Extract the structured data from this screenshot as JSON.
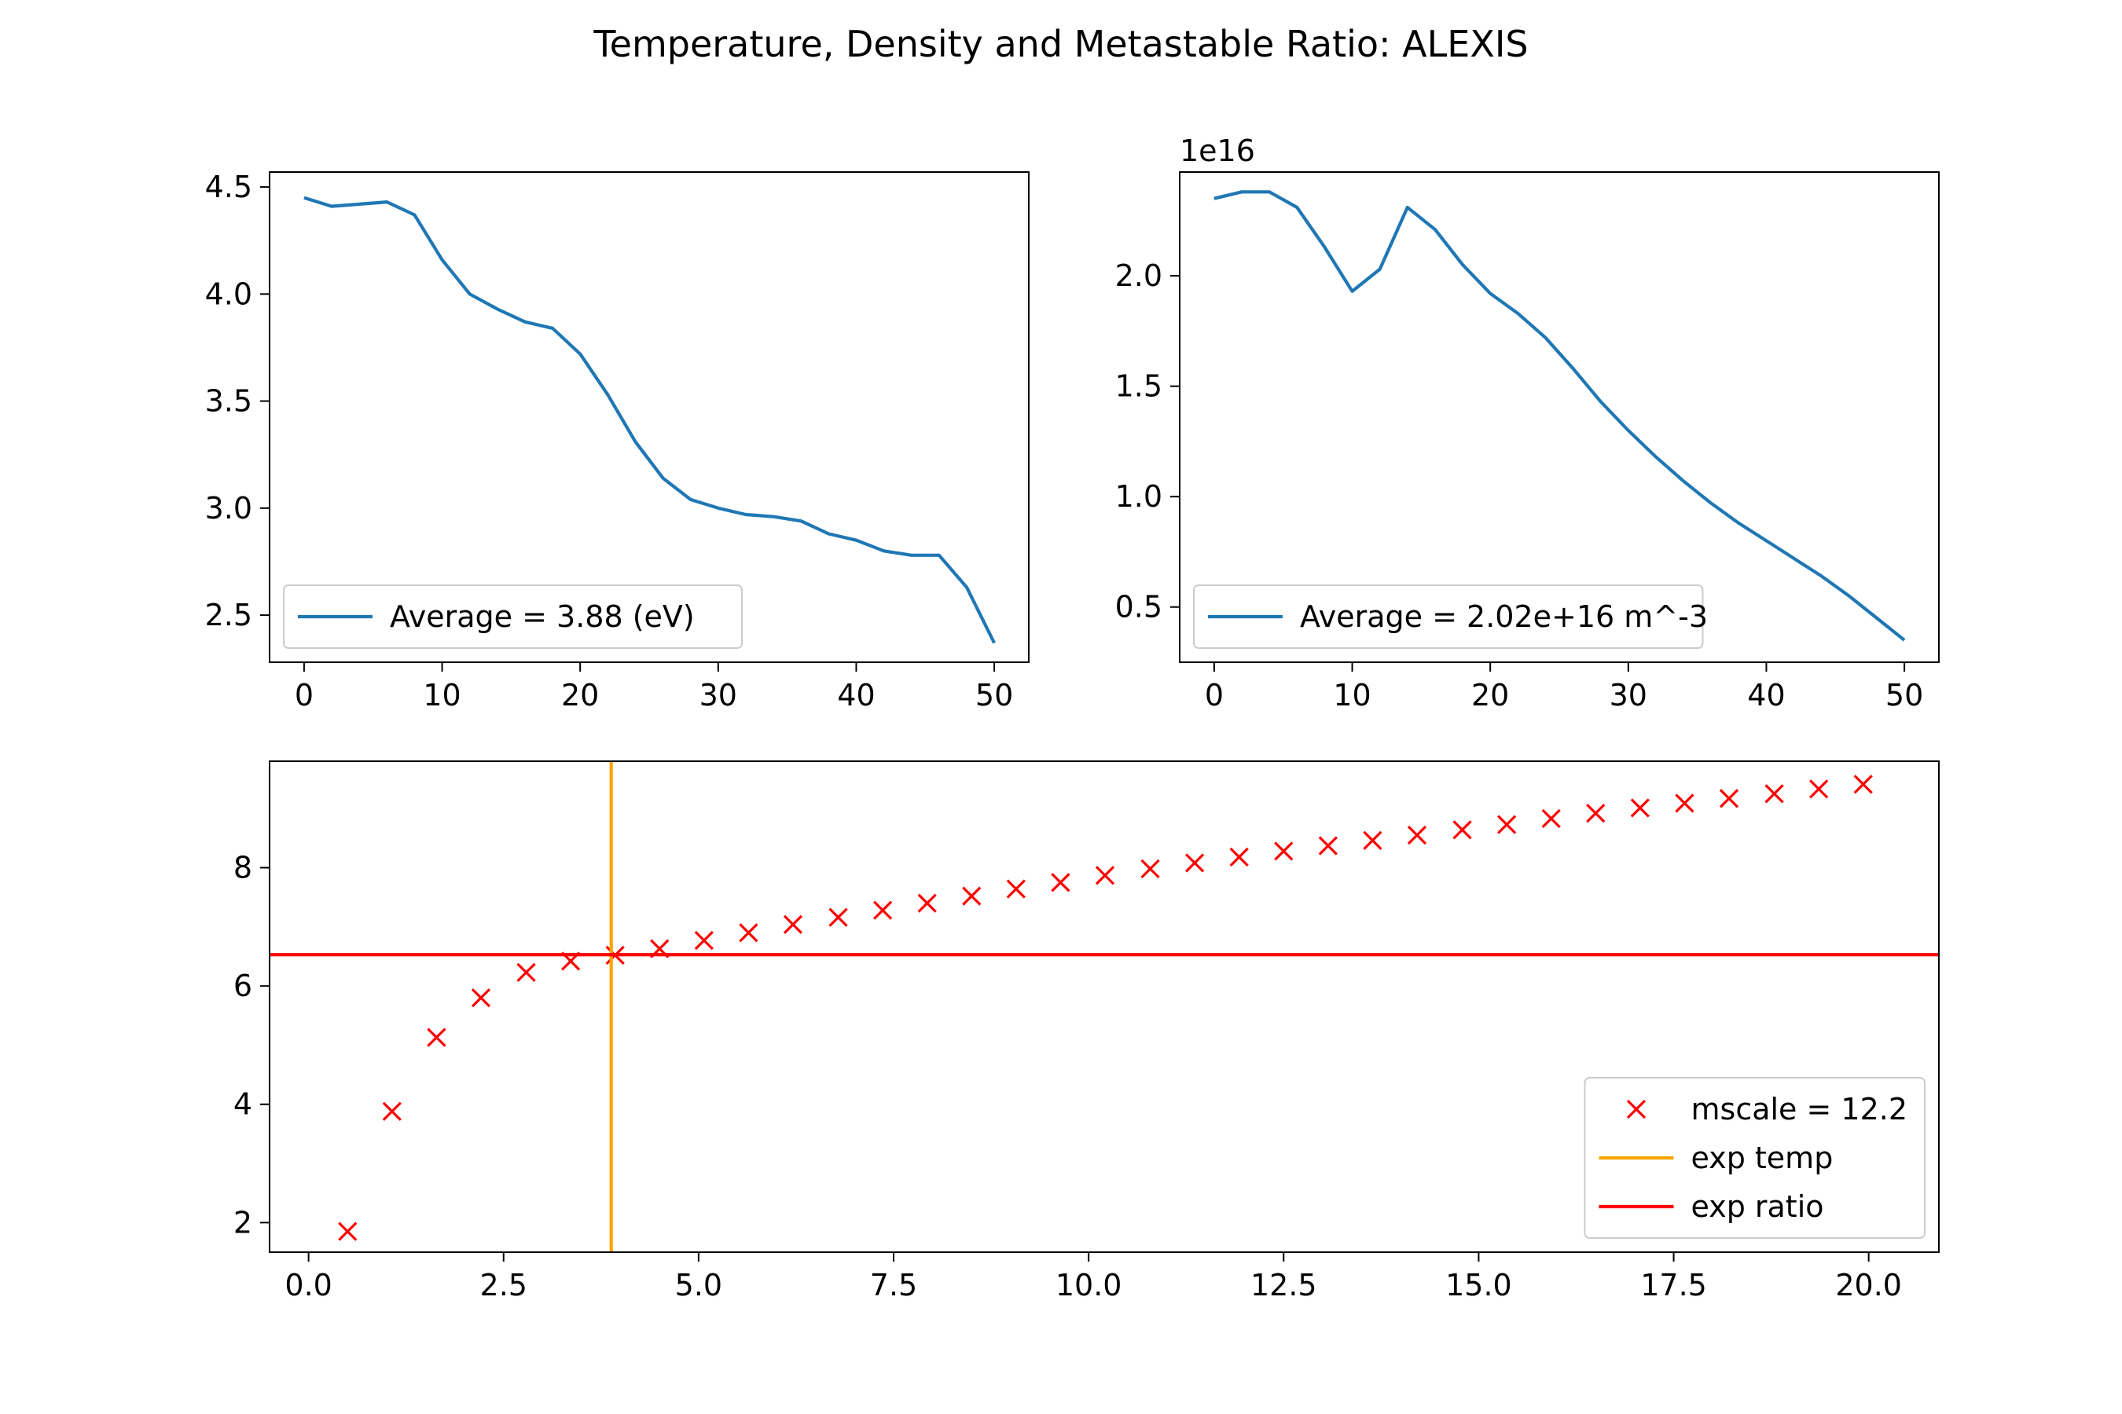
{
  "figure": {
    "title": "Temperature, Density and Metastable Ratio: ALEXIS"
  },
  "chart_data": [
    {
      "id": "temperature",
      "type": "line",
      "title": "",
      "xlabel": "",
      "ylabel": "",
      "xlim": [
        -2.5,
        52.5
      ],
      "ylim": [
        2.28,
        4.57
      ],
      "xticks": [
        0,
        10,
        20,
        30,
        40,
        50
      ],
      "yticks": [
        2.5,
        3.0,
        3.5,
        4.0,
        4.5
      ],
      "xtick_labels": [
        "0",
        "10",
        "20",
        "30",
        "40",
        "50"
      ],
      "ytick_labels": [
        "2.5",
        "3.0",
        "3.5",
        "4.0",
        "4.5"
      ],
      "legend_position": "lower-left",
      "series": [
        {
          "name": "Average =  3.88 (eV)",
          "color": "#1f77b4",
          "x": [
            0,
            2,
            4,
            6,
            8,
            10,
            12,
            14,
            16,
            18,
            20,
            22,
            24,
            26,
            28,
            30,
            32,
            34,
            36,
            38,
            40,
            42,
            44,
            46,
            48,
            50
          ],
          "y": [
            4.45,
            4.41,
            4.42,
            4.43,
            4.37,
            4.16,
            4.0,
            3.93,
            3.87,
            3.84,
            3.72,
            3.53,
            3.31,
            3.14,
            3.04,
            3.0,
            2.97,
            2.96,
            2.94,
            2.88,
            2.85,
            2.8,
            2.78,
            2.78,
            2.63,
            2.37
          ]
        }
      ]
    },
    {
      "id": "density",
      "type": "line",
      "title": "",
      "xlabel": "",
      "ylabel": "",
      "scale_label": "1e16",
      "xlim": [
        -2.5,
        52.5
      ],
      "ylim": [
        0.25,
        2.47
      ],
      "xticks": [
        0,
        10,
        20,
        30,
        40,
        50
      ],
      "yticks": [
        0.5,
        1.0,
        1.5,
        2.0
      ],
      "xtick_labels": [
        "0",
        "10",
        "20",
        "30",
        "40",
        "50"
      ],
      "ytick_labels": [
        "0.5",
        "1.0",
        "1.5",
        "2.0"
      ],
      "legend_position": "lower-left",
      "series": [
        {
          "name": "Average = 2.02e+16 m^-3",
          "color": "#1f77b4",
          "x": [
            0,
            2,
            4,
            6,
            8,
            10,
            12,
            14,
            16,
            18,
            20,
            22,
            24,
            26,
            28,
            30,
            32,
            34,
            36,
            38,
            40,
            42,
            44,
            46,
            48,
            50
          ],
          "y": [
            2.35,
            2.38,
            2.38,
            2.31,
            2.13,
            1.93,
            2.03,
            2.31,
            2.21,
            2.05,
            1.92,
            1.83,
            1.72,
            1.58,
            1.43,
            1.3,
            1.18,
            1.07,
            0.97,
            0.88,
            0.8,
            0.72,
            0.64,
            0.55,
            0.45,
            0.35
          ]
        }
      ]
    },
    {
      "id": "ratio",
      "type": "scatter",
      "title": "",
      "xlabel": "",
      "ylabel": "",
      "xlim": [
        -0.5,
        20.9
      ],
      "ylim": [
        1.5,
        9.8
      ],
      "xticks": [
        0.0,
        2.5,
        5.0,
        7.5,
        10.0,
        12.5,
        15.0,
        17.5,
        20.0
      ],
      "yticks": [
        2,
        4,
        6,
        8
      ],
      "xtick_labels": [
        "0.0",
        "2.5",
        "5.0",
        "7.5",
        "10.0",
        "12.5",
        "15.0",
        "17.5",
        "20.0"
      ],
      "ytick_labels": [
        "2",
        "4",
        "6",
        "8"
      ],
      "legend_position": "lower-right",
      "series": [
        {
          "name": "mscale = 12.2",
          "color": "#ff0000",
          "marker": "x",
          "x": [
            0.5,
            1.07,
            1.64,
            2.21,
            2.79,
            3.36,
            3.93,
            4.5,
            5.07,
            5.64,
            6.21,
            6.79,
            7.36,
            7.93,
            8.5,
            9.07,
            9.64,
            10.21,
            10.79,
            11.36,
            11.93,
            12.5,
            13.07,
            13.64,
            14.21,
            14.79,
            15.36,
            15.93,
            16.5,
            17.07,
            17.64,
            18.21,
            18.79,
            19.36,
            19.93
          ],
          "y": [
            1.85,
            3.88,
            5.13,
            5.8,
            6.23,
            6.42,
            6.52,
            6.63,
            6.77,
            6.9,
            7.04,
            7.16,
            7.28,
            7.4,
            7.52,
            7.64,
            7.75,
            7.87,
            7.98,
            8.08,
            8.18,
            8.28,
            8.37,
            8.46,
            8.55,
            8.64,
            8.73,
            8.83,
            8.92,
            9.01,
            9.09,
            9.17,
            9.25,
            9.33,
            9.41
          ]
        },
        {
          "name": "exp temp",
          "color": "#ffa500",
          "orientation": "vertical",
          "value": 3.88
        },
        {
          "name": "exp ratio",
          "color": "#ff0000",
          "orientation": "horizontal",
          "value": 6.53
        }
      ]
    }
  ]
}
